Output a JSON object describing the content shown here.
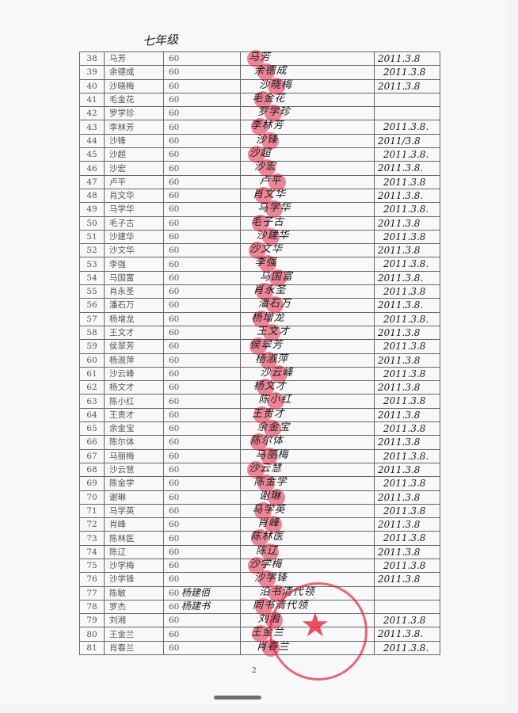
{
  "header": {
    "grade": "七年级"
  },
  "rows": [
    {
      "no": "38",
      "name": "马芳",
      "amount": "60",
      "signature": "马芳",
      "date": "2011.3.8"
    },
    {
      "no": "39",
      "name": "余德成",
      "amount": "60",
      "signature": "余德成",
      "date": "2011.3.8"
    },
    {
      "no": "40",
      "name": "沙晓梅",
      "amount": "60",
      "signature": "沙晓梅",
      "date": "2011.3.8"
    },
    {
      "no": "41",
      "name": "毛金花",
      "amount": "60",
      "signature": "毛金花",
      "date": ""
    },
    {
      "no": "42",
      "name": "罗学珍",
      "amount": "60",
      "signature": "罗学珍",
      "date": ""
    },
    {
      "no": "43",
      "name": "李林芳",
      "amount": "60",
      "signature": "李林芳",
      "date": "2011.3.8."
    },
    {
      "no": "44",
      "name": "沙锋",
      "amount": "60",
      "signature": "沙锋",
      "date": "2011/3.8"
    },
    {
      "no": "45",
      "name": "沙超",
      "amount": "60",
      "signature": "沙超",
      "date": "2011.3.8."
    },
    {
      "no": "46",
      "name": "沙宏",
      "amount": "60",
      "signature": "沙宏",
      "date": "2011.3.8."
    },
    {
      "no": "47",
      "name": "卢平",
      "amount": "60",
      "signature": "卢平",
      "date": "2011.3.8"
    },
    {
      "no": "48",
      "name": "肖文华",
      "amount": "60",
      "signature": "肖文华",
      "date": "2011.3.8."
    },
    {
      "no": "49",
      "name": "马学华",
      "amount": "60",
      "signature": "马学华",
      "date": "2011.3.8."
    },
    {
      "no": "50",
      "name": "毛子古",
      "amount": "60",
      "signature": "毛子古",
      "date": "2011.3.8"
    },
    {
      "no": "51",
      "name": "沙建华",
      "amount": "60",
      "signature": "沙建华",
      "date": "2011.3.8"
    },
    {
      "no": "52",
      "name": "沙文华",
      "amount": "60",
      "signature": "沙文华",
      "date": "2011.3.8"
    },
    {
      "no": "53",
      "name": "李强",
      "amount": "60",
      "signature": "李强",
      "date": "2011.3.8."
    },
    {
      "no": "54",
      "name": "马国富",
      "amount": "60",
      "signature": "马国富",
      "date": "2011.3.8."
    },
    {
      "no": "55",
      "name": "肖永圣",
      "amount": "60",
      "signature": "肖永圣",
      "date": "2011.3.8"
    },
    {
      "no": "56",
      "name": "潘石万",
      "amount": "60",
      "signature": "潘石万",
      "date": "2011.3.8."
    },
    {
      "no": "57",
      "name": "杨增龙",
      "amount": "60",
      "signature": "杨增龙",
      "date": "2011.3.8."
    },
    {
      "no": "58",
      "name": "王文才",
      "amount": "60",
      "signature": "王文才",
      "date": "2011.3.8"
    },
    {
      "no": "59",
      "name": "侯翠芳",
      "amount": "60",
      "signature": "侯翠芳",
      "date": "2011.3.8"
    },
    {
      "no": "60",
      "name": "杨淑萍",
      "amount": "60",
      "signature": "杨淑萍",
      "date": "2011.3.8"
    },
    {
      "no": "61",
      "name": "沙云峰",
      "amount": "60",
      "signature": "沙云峰",
      "date": "2011.3.8"
    },
    {
      "no": "62",
      "name": "杨文才",
      "amount": "60",
      "signature": "杨文才",
      "date": "2011.3.8"
    },
    {
      "no": "63",
      "name": "陈小红",
      "amount": "60",
      "signature": "陈小红",
      "date": "2011.3.8"
    },
    {
      "no": "64",
      "name": "王贵才",
      "amount": "60",
      "signature": "王贵才",
      "date": "2011.3.8"
    },
    {
      "no": "65",
      "name": "余金宝",
      "amount": "60",
      "signature": "余金宝",
      "date": "2011.3.8"
    },
    {
      "no": "66",
      "name": "陈尔体",
      "amount": "60",
      "signature": "陈尔体",
      "date": "2011.3.8"
    },
    {
      "no": "67",
      "name": "马丽梅",
      "amount": "60",
      "signature": "马丽梅",
      "date": "2011.3.8."
    },
    {
      "no": "68",
      "name": "沙云慧",
      "amount": "60",
      "signature": "沙云慧",
      "date": "2011.3.8"
    },
    {
      "no": "69",
      "name": "陈金学",
      "amount": "60",
      "signature": "陈金学",
      "date": "2011.3.8"
    },
    {
      "no": "70",
      "name": "谢琳",
      "amount": "60",
      "signature": "谢琳",
      "date": "2011.3.8"
    },
    {
      "no": "71",
      "name": "马学英",
      "amount": "60",
      "signature": "马学英",
      "date": "2011.3.8"
    },
    {
      "no": "72",
      "name": "肖峰",
      "amount": "60",
      "signature": "肖峰",
      "date": "2011.3.8"
    },
    {
      "no": "73",
      "name": "陈林医",
      "amount": "60",
      "signature": "陈林医",
      "date": "2011.3.8"
    },
    {
      "no": "74",
      "name": "陈辽",
      "amount": "60",
      "signature": "陈辽",
      "date": "2011.3.8"
    },
    {
      "no": "75",
      "name": "沙学梅",
      "amount": "60",
      "signature": "沙学梅",
      "date": "2011.3.8"
    },
    {
      "no": "76",
      "name": "沙学锋",
      "amount": "60",
      "signature": "沙学锋",
      "date": "2011.3.8"
    },
    {
      "no": "77",
      "name": "陈敏",
      "amount": "60",
      "note": "杨建佰",
      "signature": "沿书清代领",
      "date": ""
    },
    {
      "no": "78",
      "name": "罗杰",
      "amount": "60",
      "note": "杨建书",
      "signature": "同书清代领",
      "date": ""
    },
    {
      "no": "79",
      "name": "刘湘",
      "amount": "60",
      "signature": "刘湘",
      "date": "2011.3.8"
    },
    {
      "no": "80",
      "name": "王金兰",
      "amount": "60",
      "signature": "王金兰",
      "date": "2011.3.8."
    },
    {
      "no": "81",
      "name": "肖春兰",
      "amount": "60",
      "signature": "肖春兰",
      "date": "2011.3.8."
    }
  ],
  "seal": {
    "color": "#e0283c"
  },
  "footer": {
    "page_number": "2"
  }
}
